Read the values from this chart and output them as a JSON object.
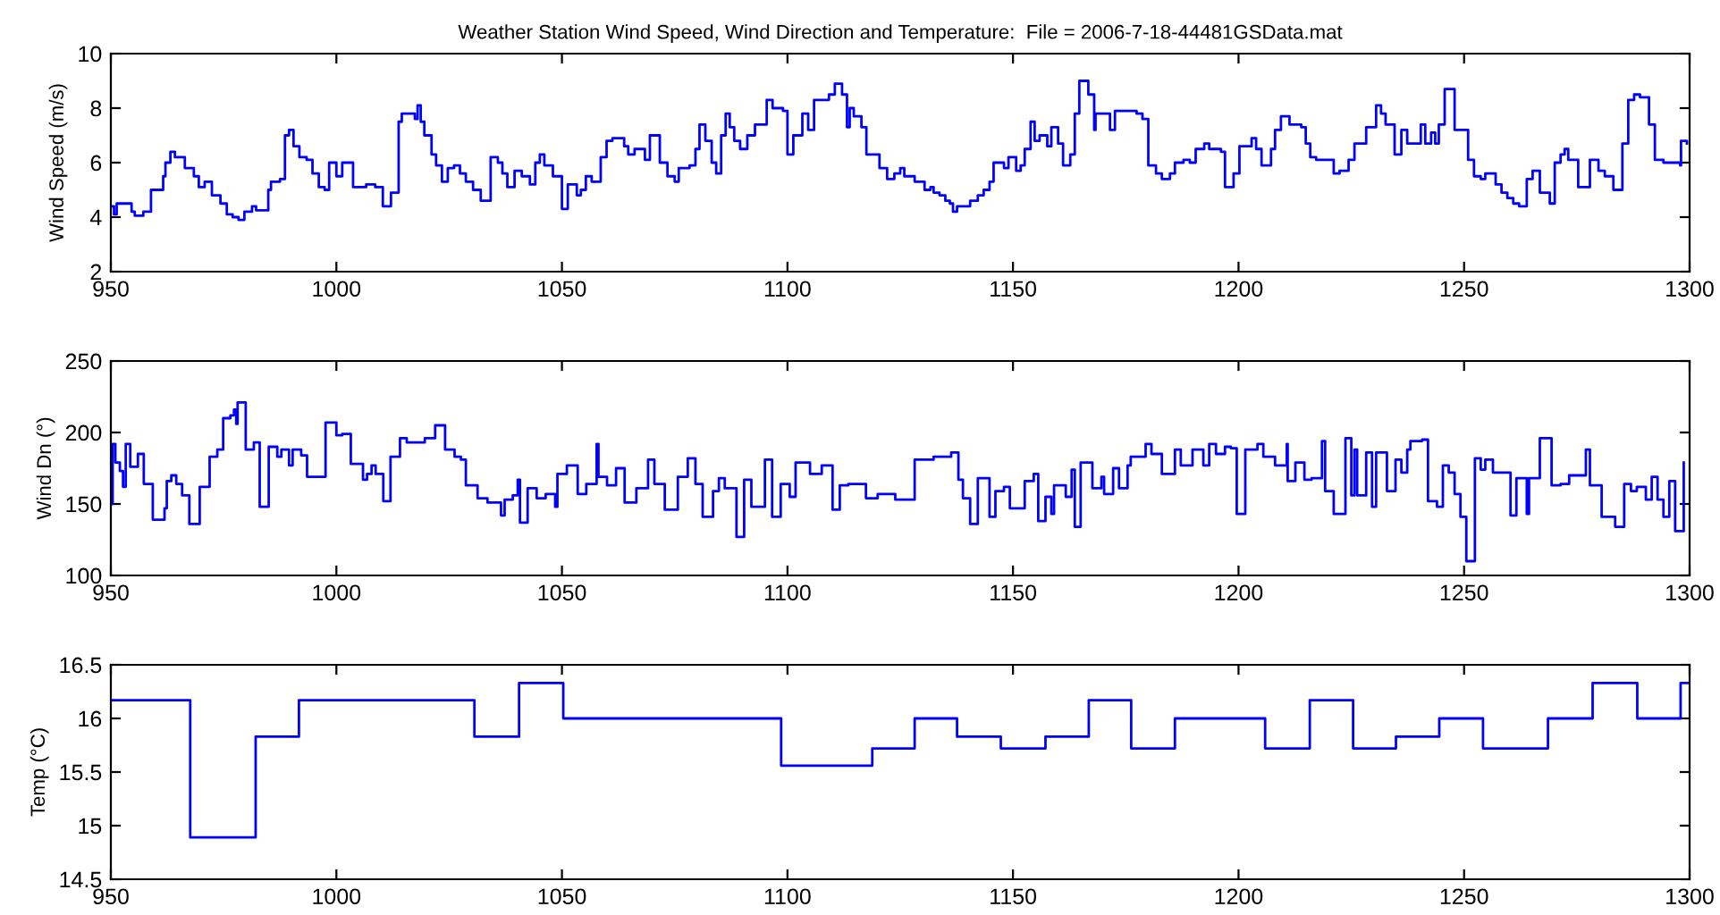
{
  "chart_data": [
    {
      "type": "step",
      "title": "Weather Station Wind Speed, Wind Direction and Temperature:  File = 2006-7-18-44481GSData.mat",
      "ylabel": "Wind Speed (m/s)",
      "xlim": [
        950,
        1300
      ],
      "xticks": [
        950,
        1000,
        1050,
        1100,
        1150,
        1200,
        1250,
        1300
      ],
      "ylim": [
        2,
        10
      ],
      "yticks": [
        2,
        4,
        6,
        8,
        10
      ],
      "series": [
        {
          "color": "#0000ff",
          "x": [
            950.0,
            950.7,
            951.3,
            954.6,
            955.3,
            957.2,
            958.9,
            961.6,
            962.1,
            963.2,
            964.2,
            966.4,
            968.4,
            969.5,
            970.8,
            972.4,
            974.3,
            975.7,
            977.0,
            978.3,
            979.6,
            981.3,
            982.2,
            984.9,
            985.5,
            987.5,
            988.6,
            989.5,
            990.5,
            991.8,
            993.4,
            994.7,
            996.1,
            997.4,
            998.4,
            1000.0,
            1001.3,
            1003.7,
            1006.6,
            1008.6,
            1010.3,
            1012.1,
            1013.8,
            1014.5,
            1017.4,
            1018.0,
            1018.7,
            1019.5,
            1021.1,
            1022.1,
            1023.4,
            1024.7,
            1026.1,
            1027.4,
            1028.7,
            1030.3,
            1032.0,
            1034.2,
            1035.8,
            1036.8,
            1037.9,
            1039.5,
            1041.1,
            1042.9,
            1044.1,
            1045.1,
            1046.1,
            1048.0,
            1050.0,
            1051.3,
            1053.3,
            1054.2,
            1055.3,
            1056.6,
            1058.6,
            1059.9,
            1061.2,
            1063.8,
            1064.7,
            1066.1,
            1068.4,
            1069.5,
            1071.7,
            1073.4,
            1075.0,
            1075.9,
            1078.3,
            1079.6,
            1080.5,
            1081.8,
            1083.2,
            1084.2,
            1085.3,
            1086.3,
            1087.2,
            1088.2,
            1089.5,
            1091.1,
            1092.8,
            1095.4,
            1096.7,
            1099.0,
            1100.0,
            1101.3,
            1103.3,
            1104.6,
            1105.9,
            1109.2,
            1110.5,
            1112.1,
            1113.2,
            1113.8,
            1114.7,
            1116.4,
            1117.5,
            1120.4,
            1122.1,
            1123.7,
            1125.0,
            1125.9,
            1128.2,
            1130.4,
            1131.7,
            1132.4,
            1133.7,
            1135.0,
            1136.0,
            1136.7,
            1137.6,
            1140.5,
            1142.2,
            1143.5,
            1144.8,
            1145.7,
            1148.0,
            1149.0,
            1150.7,
            1151.7,
            1152.6,
            1153.9,
            1154.8,
            1155.9,
            1157.6,
            1158.5,
            1160.0,
            1161.1,
            1162.7,
            1163.7,
            1164.7,
            1166.7,
            1168.0,
            1168.3,
            1171.5,
            1172.6,
            1177.4,
            1178.7,
            1180.0,
            1181.7,
            1183.0,
            1184.8,
            1185.9,
            1187.8,
            1189.2,
            1190.5,
            1192.4,
            1193.5,
            1196.1,
            1197.0,
            1198.9,
            1200.2,
            1202.9,
            1203.9,
            1205.1,
            1207.2,
            1208.1,
            1209.4,
            1211.3,
            1213.9,
            1214.9,
            1215.9,
            1217.2,
            1221.1,
            1222.4,
            1224.4,
            1225.7,
            1228.3,
            1230.5,
            1231.6,
            1232.6,
            1234.6,
            1236.1,
            1237.4,
            1240.4,
            1241.4,
            1242.7,
            1243.6,
            1244.4,
            1245.7,
            1247.9,
            1250.9,
            1252.2,
            1253.7,
            1254.7,
            1256.1,
            1257.0,
            1258.3,
            1259.6,
            1260.9,
            1262.2,
            1263.9,
            1265.2,
            1266.8,
            1269.0,
            1270.1,
            1271.4,
            1272.3,
            1273.1,
            1275.3,
            1277.9,
            1279.8,
            1281.2,
            1283.1,
            1285.1,
            1286.4,
            1287.7,
            1289.0,
            1291.0,
            1292.3,
            1294.2,
            1297.9,
            1298.1,
            1299.4
          ],
          "values": [
            4.4,
            4.1,
            4.5,
            4.2,
            4.05,
            4.2,
            5.0,
            5.5,
            6.0,
            6.4,
            6.2,
            5.8,
            5.5,
            5.1,
            5.3,
            4.8,
            4.5,
            4.1,
            4.0,
            3.9,
            4.2,
            4.4,
            4.25,
            5.0,
            5.3,
            5.4,
            7.0,
            7.2,
            6.6,
            6.2,
            6.1,
            5.6,
            5.1,
            5.0,
            6.0,
            5.5,
            6.0,
            5.1,
            5.2,
            5.1,
            4.4,
            4.9,
            7.5,
            7.8,
            7.6,
            8.1,
            7.5,
            7.0,
            6.3,
            5.9,
            5.3,
            5.8,
            5.9,
            5.6,
            5.3,
            5.0,
            4.6,
            6.2,
            6.0,
            5.6,
            5.1,
            5.7,
            5.5,
            5.2,
            6.0,
            6.3,
            5.9,
            5.5,
            4.3,
            5.2,
            4.8,
            5.0,
            5.5,
            5.3,
            6.2,
            6.8,
            6.9,
            6.6,
            6.3,
            6.5,
            6.1,
            7.0,
            6.0,
            5.5,
            5.3,
            5.8,
            5.9,
            6.5,
            7.4,
            6.8,
            6.0,
            5.6,
            7.0,
            7.8,
            7.3,
            6.8,
            6.5,
            7.0,
            7.4,
            8.3,
            8.0,
            7.9,
            6.3,
            7.0,
            7.8,
            7.2,
            8.3,
            8.5,
            8.9,
            8.5,
            7.3,
            8.0,
            7.7,
            7.3,
            6.3,
            5.8,
            5.4,
            5.6,
            5.8,
            5.5,
            5.3,
            5.0,
            5.1,
            4.9,
            4.8,
            4.6,
            4.5,
            4.2,
            4.4,
            4.6,
            4.8,
            5.0,
            5.3,
            6.0,
            5.8,
            6.2,
            5.7,
            5.9,
            6.5,
            7.5,
            6.8,
            7.0,
            6.6,
            7.3,
            6.7,
            5.9,
            6.3,
            7.8,
            9.0,
            8.5,
            7.2,
            7.8,
            7.2,
            7.9,
            7.8,
            7.6,
            5.9,
            5.6,
            5.4,
            5.6,
            6.0,
            6.1,
            6.0,
            6.5,
            6.7,
            6.5,
            6.4,
            5.1,
            5.6,
            6.6,
            6.9,
            6.5,
            5.9,
            6.5,
            7.2,
            7.7,
            7.4,
            7.3,
            6.7,
            6.2,
            6.1,
            5.6,
            5.7,
            6.1,
            6.7,
            7.3,
            8.1,
            7.8,
            7.4,
            6.3,
            7.2,
            6.7,
            7.4,
            6.7,
            7.1,
            6.7,
            7.4,
            8.7,
            7.2,
            6.1,
            5.5,
            5.4,
            5.6,
            5.6,
            5.2,
            4.9,
            4.7,
            4.5,
            4.4,
            5.4,
            5.7,
            4.9,
            4.5,
            6.0,
            6.3,
            6.5,
            6.1,
            5.1,
            6.1,
            5.7,
            5.5,
            5.0,
            6.7,
            8.3,
            8.5,
            8.4,
            7.4,
            6.1,
            6.0,
            5.9,
            6.8,
            6.7
          ]
        }
      ]
    },
    {
      "type": "step",
      "ylabel": "Wind Dn (°)",
      "xlim": [
        950,
        1300
      ],
      "xticks": [
        950,
        1000,
        1050,
        1100,
        1150,
        1200,
        1250,
        1300
      ],
      "ylim": [
        100,
        250
      ],
      "yticks": [
        100,
        150,
        200,
        250
      ],
      "series": [
        {
          "color": "#0000ff",
          "x": [
            950.0,
            950.4,
            951.0,
            952.0,
            952.7,
            953.3,
            954.3,
            956.0,
            957.3,
            959.3,
            961.9,
            962.4,
            963.4,
            964.5,
            965.8,
            967.4,
            969.7,
            971.9,
            973.6,
            974.9,
            976.5,
            977.3,
            977.8,
            978.1,
            979.9,
            981.7,
            983.0,
            985.0,
            986.9,
            987.8,
            989.5,
            990.3,
            992.2,
            993.5,
            997.6,
            1000.0,
            1001.3,
            1003.2,
            1005.9,
            1006.8,
            1007.8,
            1008.7,
            1010.4,
            1012.0,
            1014.1,
            1015.6,
            1019.6,
            1021.9,
            1024.1,
            1026.2,
            1027.6,
            1028.7,
            1031.3,
            1033.5,
            1036.5,
            1037.3,
            1039.1,
            1040.2,
            1040.7,
            1042.4,
            1044.4,
            1046.4,
            1048.5,
            1049.0,
            1051.1,
            1053.5,
            1055.4,
            1057.7,
            1058.1,
            1060.0,
            1062.0,
            1063.9,
            1066.5,
            1069.1,
            1070.5,
            1072.8,
            1075.7,
            1077.9,
            1079.6,
            1081.2,
            1083.5,
            1084.8,
            1086.1,
            1088.7,
            1090.4,
            1092.0,
            1095.0,
            1096.6,
            1098.5,
            1100.5,
            1101.8,
            1105.0,
            1107.6,
            1110.0,
            1111.6,
            1113.5,
            1117.4,
            1120.0,
            1123.9,
            1128.2,
            1132.4,
            1136.3,
            1137.9,
            1138.9,
            1140.5,
            1142.2,
            1144.8,
            1146.1,
            1148.0,
            1149.3,
            1152.6,
            1154.6,
            1155.6,
            1157.2,
            1158.5,
            1159.1,
            1161.7,
            1163.0,
            1163.7,
            1165.0,
            1167.6,
            1169.6,
            1170.2,
            1172.2,
            1173.5,
            1175.4,
            1176.1,
            1179.4,
            1180.7,
            1183.0,
            1185.9,
            1187.2,
            1189.8,
            1192.2,
            1193.5,
            1195.0,
            1197.0,
            1198.3,
            1199.6,
            1201.5,
            1204.2,
            1205.5,
            1208.1,
            1210.7,
            1210.9,
            1212.6,
            1214.6,
            1216.2,
            1218.5,
            1219.2,
            1221.1,
            1223.7,
            1225.0,
            1225.7,
            1226.3,
            1228.3,
            1229.6,
            1230.5,
            1232.9,
            1234.8,
            1236.1,
            1237.4,
            1238.1,
            1240.7,
            1242.0,
            1244.0,
            1245.3,
            1246.6,
            1247.9,
            1249.2,
            1250.5,
            1252.4,
            1253.7,
            1254.7,
            1256.4,
            1260.3,
            1261.6,
            1263.9,
            1264.4,
            1266.8,
            1269.4,
            1271.4,
            1273.3,
            1277.0,
            1277.9,
            1280.5,
            1283.5,
            1285.5,
            1287.0,
            1288.3,
            1290.3,
            1291.6,
            1292.9,
            1294.2,
            1295.5,
            1296.8,
            1298.7
          ],
          "values": [
            150,
            192,
            179,
            173,
            162,
            192,
            176,
            185,
            164,
            139,
            147,
            166,
            170,
            164,
            156,
            136,
            162,
            183,
            188,
            210,
            212,
            216,
            206,
            221,
            188,
            193,
            148,
            190,
            183,
            188,
            177,
            188,
            184,
            169,
            207,
            198,
            199,
            178,
            167,
            171,
            177,
            171,
            152,
            183,
            196,
            193,
            196,
            205,
            188,
            183,
            181,
            163,
            154,
            151,
            142,
            153,
            156,
            167,
            137,
            161,
            154,
            157,
            148,
            171,
            177,
            157,
            164,
            192,
            169,
            163,
            175,
            151,
            161,
            181,
            164,
            146,
            169,
            182,
            164,
            141,
            159,
            168,
            161,
            127,
            167,
            148,
            181,
            141,
            164,
            155,
            179,
            171,
            177,
            146,
            163,
            164,
            154,
            157,
            153,
            181,
            183,
            186,
            167,
            154,
            136,
            168,
            141,
            159,
            162,
            147,
            166,
            171,
            138,
            155,
            143,
            163,
            155,
            174,
            134,
            179,
            161,
            169,
            157,
            175,
            161,
            177,
            183,
            192,
            185,
            171,
            188,
            177,
            188,
            177,
            192,
            185,
            190,
            189,
            143,
            188,
            192,
            183,
            177,
            192,
            166,
            179,
            167,
            168,
            194,
            159,
            143,
            196,
            156,
            188,
            156,
            186,
            148,
            186,
            159,
            181,
            172,
            188,
            194,
            195,
            152,
            148,
            177,
            172,
            157,
            141,
            110,
            182,
            174,
            181,
            172,
            142,
            168,
            143,
            168,
            196,
            163,
            164,
            170,
            188,
            163,
            141,
            134,
            164,
            159,
            162,
            153,
            169,
            153,
            141,
            166,
            131,
            179
          ]
        }
      ]
    },
    {
      "type": "step",
      "ylabel": "Temp (°C)",
      "xlim": [
        950,
        1300
      ],
      "xticks": [
        950,
        1000,
        1050,
        1100,
        1150,
        1200,
        1250,
        1300
      ],
      "ylim": [
        14.5,
        16.5
      ],
      "yticks": [
        14.5,
        15,
        15.5,
        16,
        16.5
      ],
      "series": [
        {
          "color": "#0000ff",
          "x": [
            950.0,
            967.6,
            982.1,
            991.7,
            1030.6,
            1040.5,
            1050.3,
            1098.6,
            1118.8,
            1128.2,
            1137.6,
            1147.3,
            1157.2,
            1166.8,
            1176.2,
            1185.9,
            1205.9,
            1215.8,
            1225.4,
            1234.9,
            1244.5,
            1254.2,
            1268.6,
            1278.5,
            1288.4,
            1298.0,
            1300
          ],
          "values": [
            16.17,
            14.89,
            15.83,
            16.17,
            15.83,
            16.33,
            16.0,
            15.56,
            15.72,
            16.0,
            15.83,
            15.72,
            15.83,
            16.17,
            15.72,
            16.0,
            15.72,
            16.17,
            15.72,
            15.83,
            16.0,
            15.72,
            16.0,
            16.33,
            16.0,
            16.33,
            16.33
          ]
        }
      ]
    }
  ]
}
